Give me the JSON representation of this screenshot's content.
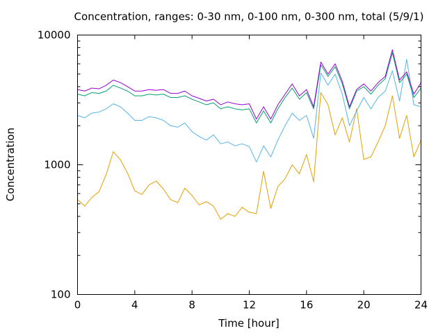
{
  "chart_data": {
    "type": "line",
    "title": "Concentration, ranges: 0-30 nm, 0-100 nm, 0-300 nm, total (5/9/1)",
    "xlabel": "Time [hour]",
    "ylabel": "Concentration",
    "xlim": [
      0,
      24
    ],
    "ylim": [
      100,
      10000
    ],
    "yscale": "log",
    "grid": false,
    "legend": "none",
    "x_ticks": [
      "0",
      "4",
      "8",
      "12",
      "16",
      "20",
      "24"
    ],
    "y_ticks": [
      "100",
      "1000",
      "10000"
    ],
    "x_tick_values": [
      0,
      4,
      8,
      12,
      16,
      20,
      24
    ],
    "y_tick_values": [
      100,
      1000,
      10000
    ],
    "series": [
      {
        "color": "#e69f00",
        "x": [
          0,
          0.5,
          1,
          1.5,
          2,
          2.5,
          3,
          3.5,
          4,
          4.5,
          5,
          5.5,
          6,
          6.5,
          7,
          7.5,
          8,
          8.5,
          9,
          9.5,
          10,
          10.5,
          11,
          11.5,
          12,
          12.5,
          13,
          13.5,
          14,
          14.5,
          15,
          15.5,
          16,
          16.5,
          17,
          17.5,
          18,
          18.5,
          19,
          19.5,
          20,
          20.5,
          21,
          21.5,
          22,
          22.5,
          23,
          23.5,
          24
        ],
        "values": [
          540,
          480,
          560,
          620,
          840,
          1260,
          1090,
          860,
          630,
          590,
          700,
          750,
          650,
          540,
          510,
          660,
          580,
          490,
          520,
          480,
          380,
          420,
          400,
          470,
          430,
          420,
          890,
          460,
          680,
          780,
          1000,
          850,
          1200,
          740,
          3600,
          2900,
          1700,
          2300,
          1500,
          2700,
          1100,
          1150,
          1500,
          2000,
          3400,
          1600,
          2400,
          1150,
          1550
        ]
      },
      {
        "color": "#56b4e9",
        "x": [
          0,
          0.5,
          1,
          1.5,
          2,
          2.5,
          3,
          3.5,
          4,
          4.5,
          5,
          5.5,
          6,
          6.5,
          7,
          7.5,
          8,
          8.5,
          9,
          9.5,
          10,
          10.5,
          11,
          11.5,
          12,
          12.5,
          13,
          13.5,
          14,
          14.5,
          15,
          15.5,
          16,
          16.5,
          17,
          17.5,
          18,
          18.5,
          19,
          19.5,
          20,
          20.5,
          21,
          21.5,
          22,
          22.5,
          23,
          23.5,
          24
        ],
        "values": [
          2400,
          2300,
          2500,
          2550,
          2700,
          2950,
          2800,
          2500,
          2200,
          2200,
          2350,
          2300,
          2200,
          2000,
          1950,
          2100,
          1800,
          1650,
          1550,
          1700,
          1450,
          1500,
          1400,
          1450,
          1380,
          1050,
          1400,
          1150,
          1550,
          2000,
          2500,
          2200,
          2400,
          1600,
          5100,
          4100,
          5000,
          3500,
          2000,
          2600,
          3300,
          2700,
          3300,
          3700,
          5300,
          3100,
          6500,
          2900,
          2800
        ]
      },
      {
        "color": "#009e73",
        "x": [
          0,
          0.5,
          1,
          1.5,
          2,
          2.5,
          3,
          3.5,
          4,
          4.5,
          5,
          5.5,
          6,
          6.5,
          7,
          7.5,
          8,
          8.5,
          9,
          9.5,
          10,
          10.5,
          11,
          11.5,
          12,
          12.5,
          13,
          13.5,
          14,
          14.5,
          15,
          15.5,
          16,
          16.5,
          17,
          17.5,
          18,
          18.5,
          19,
          19.5,
          20,
          20.5,
          21,
          21.5,
          22,
          22.5,
          23,
          23.5,
          24
        ],
        "values": [
          3500,
          3400,
          3600,
          3550,
          3700,
          4100,
          3900,
          3700,
          3400,
          3400,
          3500,
          3450,
          3500,
          3300,
          3300,
          3400,
          3200,
          3050,
          2900,
          3000,
          2700,
          2800,
          2700,
          2650,
          2700,
          2100,
          2600,
          2100,
          2700,
          3300,
          3900,
          3200,
          3600,
          2700,
          5900,
          4800,
          5700,
          4200,
          2700,
          3700,
          4000,
          3500,
          4100,
          4600,
          7300,
          4300,
          5000,
          3300,
          3900
        ]
      },
      {
        "color": "#9400d3",
        "x": [
          0,
          0.5,
          1,
          1.5,
          2,
          2.5,
          3,
          3.5,
          4,
          4.5,
          5,
          5.5,
          6,
          6.5,
          7,
          7.5,
          8,
          8.5,
          9,
          9.5,
          10,
          10.5,
          11,
          11.5,
          12,
          12.5,
          13,
          13.5,
          14,
          14.5,
          15,
          15.5,
          16,
          16.5,
          17,
          17.5,
          18,
          18.5,
          19,
          19.5,
          20,
          20.5,
          21,
          21.5,
          22,
          22.5,
          23,
          23.5,
          24
        ],
        "values": [
          3800,
          3700,
          3900,
          3850,
          4100,
          4500,
          4300,
          4000,
          3700,
          3700,
          3800,
          3750,
          3800,
          3550,
          3550,
          3700,
          3400,
          3250,
          3100,
          3200,
          2900,
          3050,
          2950,
          2900,
          2950,
          2250,
          2800,
          2250,
          2900,
          3500,
          4200,
          3400,
          3800,
          2800,
          6200,
          5000,
          6000,
          4400,
          2800,
          3800,
          4200,
          3700,
          4300,
          4800,
          7700,
          4500,
          5200,
          3500,
          4300
        ]
      }
    ]
  }
}
